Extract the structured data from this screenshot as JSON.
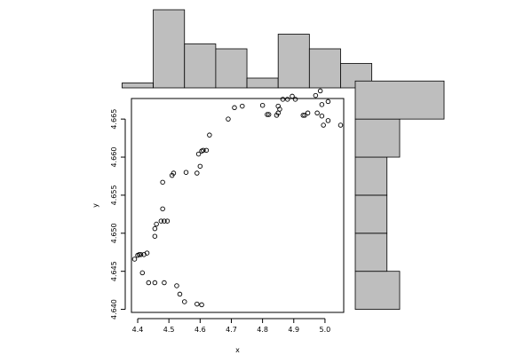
{
  "chart_data": {
    "type": "scatter",
    "xlabel": "x",
    "ylabel": "y",
    "xlim": [
      4.38,
      5.06
    ],
    "ylim": [
      4.6396,
      4.6677
    ],
    "x_ticks": [
      4.4,
      4.5,
      4.6,
      4.7,
      4.8,
      4.9,
      5.0
    ],
    "x_tick_labels": [
      "4.4",
      "4.5",
      "4.6",
      "4.7",
      "4.8",
      "4.9",
      "5.0"
    ],
    "y_ticks": [
      4.64,
      4.645,
      4.65,
      4.655,
      4.66,
      4.665
    ],
    "y_tick_labels": [
      "4.640",
      "4.645",
      "4.650",
      "4.655",
      "4.660",
      "4.665"
    ],
    "point_color": "#000000",
    "hist_fill": "#bebebe",
    "grid": false,
    "points": [
      [
        4.39,
        4.6466
      ],
      [
        4.4,
        4.6471
      ],
      [
        4.405,
        4.6472
      ],
      [
        4.41,
        4.6472
      ],
      [
        4.42,
        4.6472
      ],
      [
        4.43,
        4.6474
      ],
      [
        4.415,
        4.6448
      ],
      [
        4.435,
        4.6435
      ],
      [
        4.455,
        4.6435
      ],
      [
        4.485,
        4.6435
      ],
      [
        4.455,
        4.6496
      ],
      [
        4.455,
        4.6506
      ],
      [
        4.46,
        4.6512
      ],
      [
        4.475,
        4.6516
      ],
      [
        4.485,
        4.6516
      ],
      [
        4.495,
        4.6516
      ],
      [
        4.48,
        4.6532
      ],
      [
        4.48,
        4.6567
      ],
      [
        4.51,
        4.6576
      ],
      [
        4.515,
        4.6579
      ],
      [
        4.525,
        4.6431
      ],
      [
        4.535,
        4.642
      ],
      [
        4.55,
        4.641
      ],
      [
        4.59,
        4.6407
      ],
      [
        4.605,
        4.6406
      ],
      [
        4.555,
        4.658
      ],
      [
        4.59,
        4.6579
      ],
      [
        4.595,
        4.6604
      ],
      [
        4.6,
        4.6588
      ],
      [
        4.605,
        4.6608
      ],
      [
        4.61,
        4.6609
      ],
      [
        4.62,
        4.6609
      ],
      [
        4.63,
        4.6629
      ],
      [
        4.69,
        4.665
      ],
      [
        4.71,
        4.6665
      ],
      [
        4.735,
        4.6667
      ],
      [
        4.8,
        4.6668
      ],
      [
        4.815,
        4.6656
      ],
      [
        4.82,
        4.6656
      ],
      [
        4.845,
        4.6655
      ],
      [
        4.85,
        4.6658
      ],
      [
        4.85,
        4.6667
      ],
      [
        4.855,
        4.6663
      ],
      [
        4.865,
        4.6676
      ],
      [
        4.88,
        4.6676
      ],
      [
        4.895,
        4.668
      ],
      [
        4.905,
        4.6676
      ],
      [
        4.93,
        4.6655
      ],
      [
        4.935,
        4.6655
      ],
      [
        4.945,
        4.6658
      ],
      [
        4.97,
        4.6681
      ],
      [
        4.975,
        4.6658
      ],
      [
        4.985,
        4.6687
      ],
      [
        4.99,
        4.6654
      ],
      [
        4.99,
        4.6669
      ],
      [
        4.995,
        4.6642
      ],
      [
        5.01,
        4.6673
      ],
      [
        5.01,
        4.6648
      ],
      [
        5.05,
        4.6642
      ]
    ],
    "top_histogram": {
      "breaks": [
        4.35,
        4.45,
        4.55,
        4.65,
        4.75,
        4.85,
        4.95,
        5.05,
        5.15
      ],
      "counts": [
        1,
        16,
        9,
        8,
        2,
        11,
        8,
        5
      ]
    },
    "right_histogram": {
      "breaks": [
        4.64,
        4.645,
        4.65,
        4.655,
        4.66,
        4.665,
        4.67
      ],
      "counts": [
        7,
        5,
        5,
        5,
        7,
        14
      ]
    }
  }
}
